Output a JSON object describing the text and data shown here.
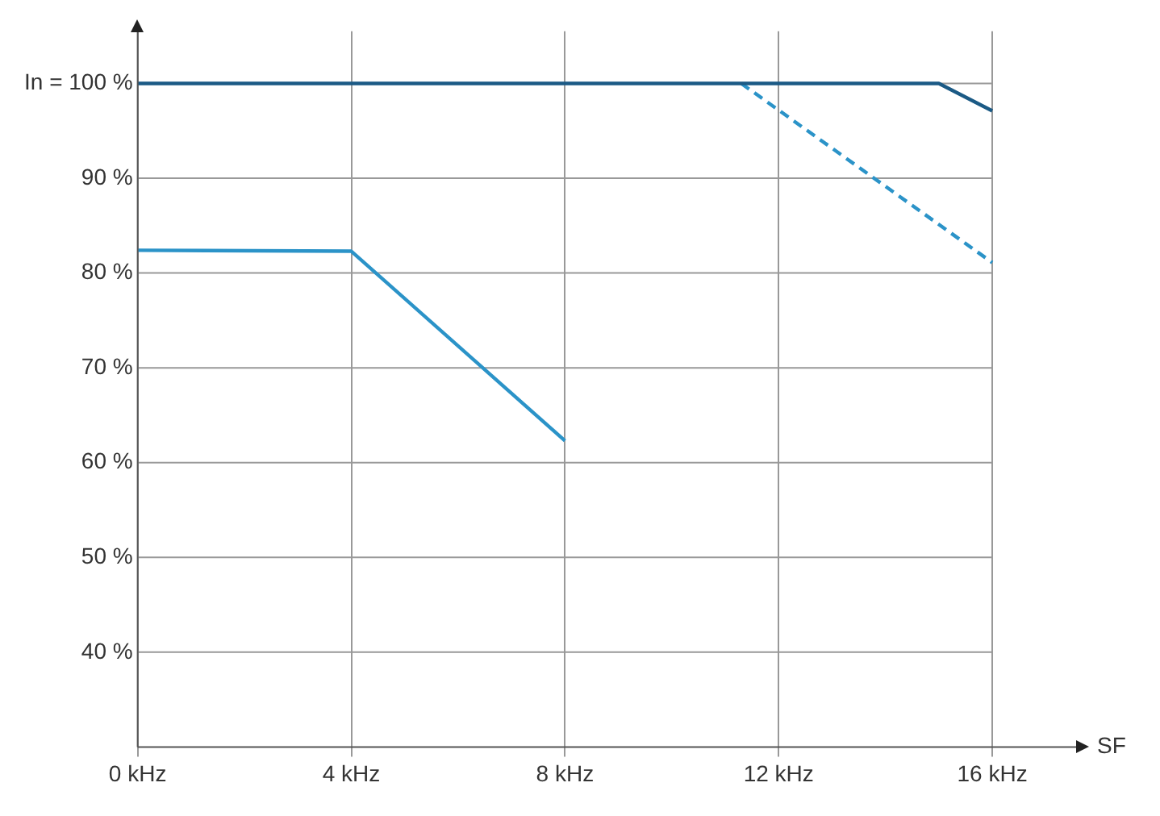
{
  "chart_data": {
    "type": "line",
    "xlabel": "SF",
    "series": [
      {
        "color": "#1b5a85",
        "x": [
          0,
          15,
          16
        ],
        "values": [
          100,
          100,
          97.1
        ],
        "line_style": "solid"
      },
      {
        "color": "#2b93c8",
        "x": [
          0,
          4,
          8
        ],
        "values": [
          82.4,
          82.3,
          62.3
        ],
        "line_style": "solid"
      },
      {
        "color": "#2b93c8",
        "x": [
          11.3,
          16
        ],
        "values": [
          100,
          81.1
        ],
        "line_style": "dashed"
      }
    ],
    "xlim": [
      0,
      17.6
    ],
    "xticks": [
      {
        "value": 0,
        "label": "0 kHz"
      },
      {
        "value": 4,
        "label": "4 kHz"
      },
      {
        "value": 8,
        "label": "8 kHz"
      },
      {
        "value": 12,
        "label": "12 kHz"
      },
      {
        "value": 16,
        "label": "16 kHz"
      }
    ],
    "ylim": [
      30,
      105.5
    ],
    "yticks": [
      {
        "value": 40,
        "label": "40 %"
      },
      {
        "value": 50,
        "label": "50 %"
      },
      {
        "value": 60,
        "label": "60 %"
      },
      {
        "value": 70,
        "label": "70 %"
      },
      {
        "value": 80,
        "label": "80 %"
      },
      {
        "value": 90,
        "label": "90 %"
      },
      {
        "value": 100,
        "label": "In = 100 %"
      }
    ],
    "grid": true,
    "legend": false,
    "marker": "none"
  }
}
